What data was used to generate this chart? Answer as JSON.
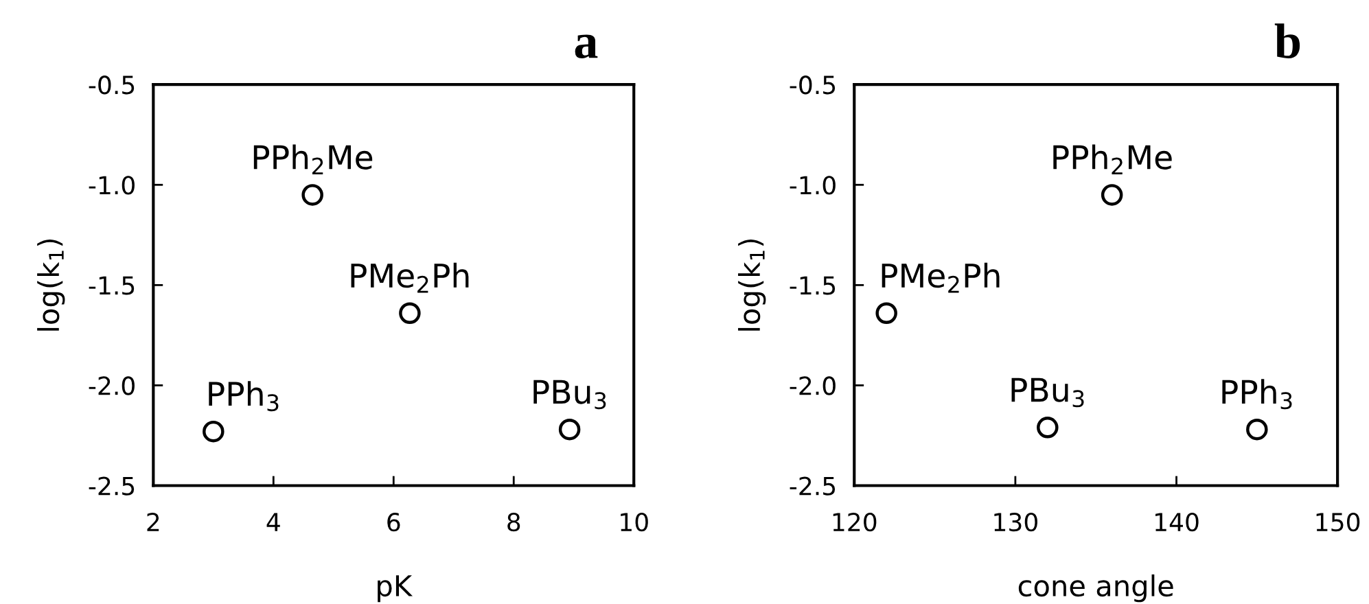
{
  "chart_data": [
    {
      "type": "scatter",
      "title": "a",
      "xlabel": "pK",
      "ylabel": "log(k$_{1}$)",
      "marker": "circle",
      "xlim": [
        2,
        10
      ],
      "ylim": [
        -2.5,
        -0.5
      ],
      "xticks": [
        2,
        4,
        6,
        8,
        10
      ],
      "yticks": [
        {
          "value": -2.5,
          "label": "-2.5"
        },
        {
          "value": -2.0,
          "label": "-2.0"
        },
        {
          "value": -1.5,
          "label": "-1.5"
        },
        {
          "value": -1.0,
          "label": "-1.0"
        },
        {
          "value": -0.5,
          "label": "-0.5"
        }
      ],
      "series": [
        {
          "color": "#000000",
          "x": [
            3.0,
            4.65,
            6.27,
            8.93
          ],
          "values": [
            -2.23,
            -1.05,
            -1.64,
            -2.22
          ]
        }
      ],
      "annotations": [
        {
          "text": "PPh$_{3}$",
          "x": 3.0,
          "y": -2.23
        },
        {
          "text": "PPh$_{2}$Me",
          "x": 4.65,
          "y": -1.05
        },
        {
          "text": "PMe$_{2}$Ph",
          "x": 6.27,
          "y": -1.64
        },
        {
          "text": "PBu$_{3}$",
          "x": 8.93,
          "y": -2.22
        }
      ]
    },
    {
      "type": "scatter",
      "title": "b",
      "xlabel": "cone angle",
      "ylabel": "log(k$_{1}$)",
      "marker": "circle",
      "xlim": [
        120,
        150
      ],
      "ylim": [
        -2.5,
        -0.5
      ],
      "xticks": [
        120,
        130,
        140,
        150
      ],
      "yticks": [
        {
          "value": -2.5,
          "label": "-2.5"
        },
        {
          "value": -2.0,
          "label": "-2.0"
        },
        {
          "value": -1.5,
          "label": "-1.5"
        },
        {
          "value": -1.0,
          "label": "-1.0"
        },
        {
          "value": -0.5,
          "label": "-0.5"
        }
      ],
      "series": [
        {
          "color": "#000000",
          "x": [
            122,
            136,
            132,
            145
          ],
          "values": [
            -1.64,
            -1.05,
            -2.21,
            -2.22
          ]
        }
      ],
      "annotations": [
        {
          "text": "PMe$_{2}$Ph",
          "x": 122,
          "y": -1.64
        },
        {
          "text": "PPh$_{2}$Me",
          "x": 136,
          "y": -1.05
        },
        {
          "text": "PBu$_{3}$",
          "x": 132,
          "y": -2.21
        },
        {
          "text": "PPh$_{3}$",
          "x": 145,
          "y": -2.22
        }
      ]
    }
  ]
}
